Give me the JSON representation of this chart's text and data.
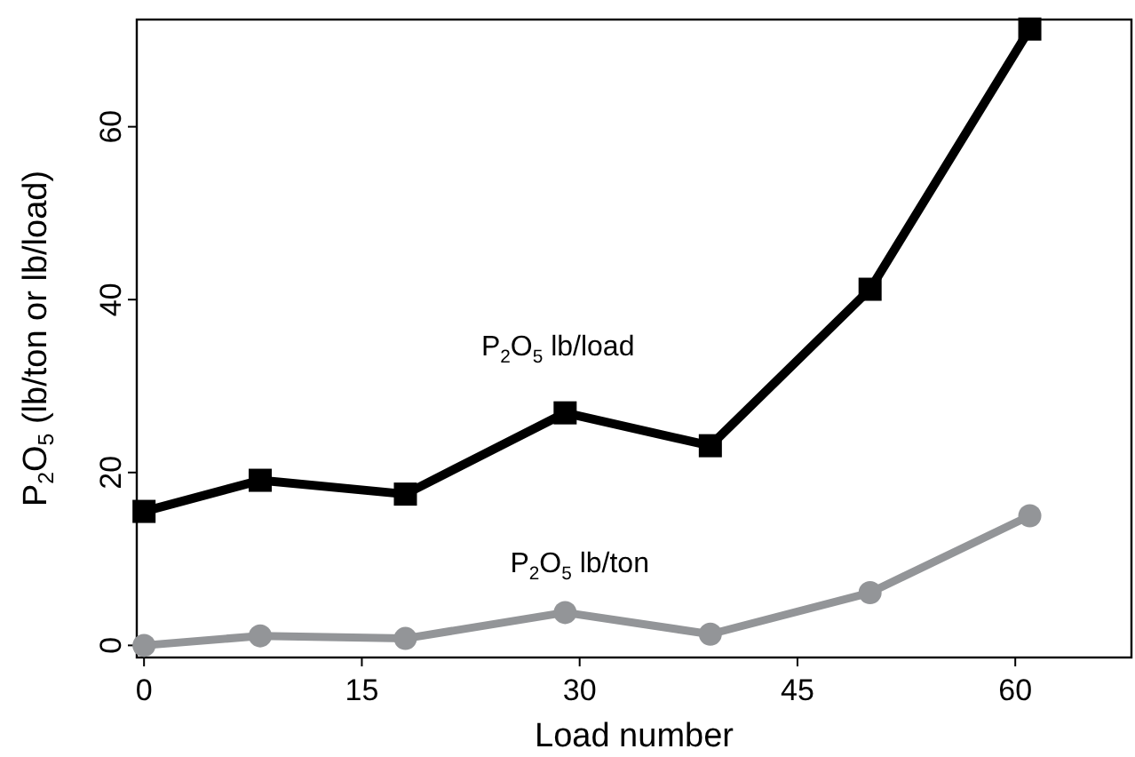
{
  "chart_data": {
    "type": "line",
    "xlabel": "Load number",
    "ylabel": "P$_{2}$O$_{5}$ (lb/ton or lb/load)",
    "x": [
      0,
      8,
      18,
      29,
      39,
      50,
      61
    ],
    "xlim": [
      -0.5,
      68
    ],
    "xticks": [
      0,
      15,
      30,
      45,
      60
    ],
    "ylim": [
      -1.4,
      72.4
    ],
    "yticks": [
      0,
      20,
      40,
      60
    ],
    "grid": false,
    "line_style": "solid",
    "series": [
      {
        "name": "P$_{2}$O$_{5}$ lb/load",
        "color": "#000000",
        "marker": "square",
        "values": [
          15.5,
          19.1,
          17.5,
          26.9,
          23.1,
          41.2,
          71.3
        ]
      },
      {
        "name": "P$_{2}$O$_{5}$ lb/ton",
        "color": "#939598",
        "marker": "circle",
        "values": [
          0,
          1.1,
          0.8,
          3.8,
          1.3,
          6.1,
          15.0
        ]
      }
    ]
  }
}
